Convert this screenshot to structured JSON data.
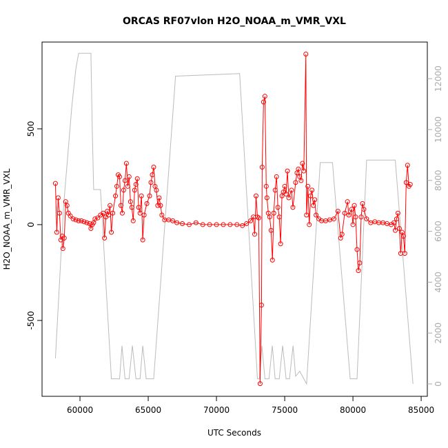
{
  "chart_data": {
    "type": "line_scatter",
    "title": "ORCAS RF07vlon H2O_NOAA_m_VMR_VXL",
    "x_label": "UTC Seconds",
    "y_label": "H2O_NOAA_m_VMR_VXL",
    "xlim": [
      57220,
      85450
    ],
    "ylim": [
      -896,
      953
    ],
    "y2lim": [
      -488,
      13440
    ],
    "xticks": [
      60000,
      65000,
      70000,
      75000,
      80000,
      85000
    ],
    "yticks": [
      -500,
      0,
      500
    ],
    "y2ticks": [
      0,
      2000,
      4000,
      6000,
      8000,
      10000,
      12000
    ],
    "series": [
      {
        "color": "#bbbbbb",
        "axis": "y2",
        "x": [
          58200,
          58800,
          59400,
          59700,
          59900,
          60800,
          60900,
          61000,
          61500,
          62300,
          62900,
          63080,
          63300,
          63600,
          63840,
          64100,
          64400,
          64600,
          64850,
          65400,
          67000,
          71700,
          73000,
          73150,
          73330,
          73550,
          73850,
          74090,
          74300,
          74600,
          74850,
          75100,
          75350,
          75610,
          75800,
          76100,
          76600,
          77600,
          78500,
          79800,
          80300,
          81000,
          83100,
          84400
        ],
        "values": [
          1000,
          7000,
          10900,
          12400,
          13000,
          13000,
          9950,
          7640,
          7640,
          200,
          200,
          1500,
          200,
          200,
          1500,
          200,
          200,
          1500,
          200,
          200,
          12100,
          12200,
          200,
          200,
          1500,
          200,
          200,
          1500,
          200,
          200,
          1500,
          200,
          200,
          1500,
          300,
          500,
          0,
          8700,
          8700,
          200,
          200,
          8800,
          8800,
          0
        ]
      },
      {
        "color": "#ff0000",
        "x": [
          58200,
          58300,
          58400,
          58500,
          58600,
          58700,
          58750,
          58850,
          58950,
          59050,
          59150,
          59300,
          59500,
          59700,
          59900,
          60100,
          60300,
          60500,
          60700,
          60800,
          60900,
          61000,
          61100,
          61300,
          61500,
          61700,
          61800,
          61900,
          62000,
          62100,
          62200,
          62300,
          62400,
          62600,
          62700,
          62800,
          62900,
          63000,
          63100,
          63200,
          63300,
          63400,
          63500,
          63600,
          63700,
          63800,
          63900,
          64000,
          64100,
          64200,
          64300,
          64400,
          64500,
          64600,
          64700,
          64900,
          65100,
          65200,
          65300,
          65400,
          65500,
          65600,
          65700,
          65800,
          65900,
          66000,
          66200,
          66500,
          66800,
          67100,
          67500,
          68000,
          68500,
          69000,
          69500,
          70000,
          70500,
          71000,
          71500,
          71900,
          72200,
          72500,
          72700,
          72800,
          72900,
          73000,
          73100,
          73200,
          73300,
          73350,
          73450,
          73550,
          73650,
          73700,
          73800,
          73900,
          74000,
          74100,
          74200,
          74300,
          74400,
          74500,
          74600,
          74700,
          74800,
          74900,
          75000,
          75100,
          75200,
          75300,
          75500,
          75600,
          75800,
          75900,
          76000,
          76100,
          76200,
          76300,
          76400,
          76550,
          76600,
          76700,
          76800,
          76900,
          77000,
          77100,
          77200,
          77300,
          77500,
          77700,
          78000,
          78300,
          78600,
          78900,
          79100,
          79200,
          79400,
          79600,
          79700,
          79900,
          80000,
          80100,
          80200,
          80300,
          80400,
          80500,
          80600,
          80700,
          80800,
          81000,
          81300,
          81600,
          81900,
          82200,
          82500,
          82800,
          83000,
          83100,
          83200,
          83300,
          83400,
          83500,
          83600,
          83700,
          83800,
          83900,
          84000,
          84100,
          84200
        ],
        "values": [
          215,
          -40,
          140,
          60,
          -80,
          -60,
          -125,
          -70,
          120,
          100,
          60,
          45,
          30,
          25,
          20,
          20,
          15,
          10,
          5,
          -20,
          0,
          10,
          30,
          35,
          50,
          60,
          -70,
          40,
          70,
          50,
          100,
          -40,
          60,
          150,
          200,
          260,
          250,
          100,
          60,
          180,
          230,
          320,
          200,
          250,
          120,
          90,
          20,
          180,
          210,
          240,
          90,
          60,
          150,
          -80,
          50,
          110,
          150,
          220,
          260,
          300,
          200,
          180,
          100,
          140,
          100,
          50,
          25,
          25,
          20,
          10,
          5,
          0,
          10,
          0,
          0,
          0,
          0,
          0,
          0,
          -5,
          5,
          20,
          40,
          -50,
          150,
          40,
          35,
          -830,
          -420,
          300,
          640,
          670,
          200,
          140,
          60,
          40,
          -30,
          -185,
          60,
          180,
          250,
          90,
          40,
          -100,
          150,
          170,
          200,
          160,
          280,
          140,
          180,
          90,
          220,
          270,
          290,
          250,
          230,
          320,
          280,
          890,
          50,
          200,
          0,
          150,
          180,
          100,
          130,
          50,
          30,
          20,
          20,
          25,
          30,
          70,
          -70,
          -50,
          60,
          120,
          50,
          80,
          0,
          100,
          40,
          -130,
          -240,
          -200,
          40,
          110,
          80,
          30,
          10,
          15,
          10,
          10,
          5,
          0,
          10,
          -30,
          30,
          60,
          -20,
          -150,
          -40,
          -60,
          -150,
          220,
          310,
          200,
          210
        ]
      }
    ]
  }
}
